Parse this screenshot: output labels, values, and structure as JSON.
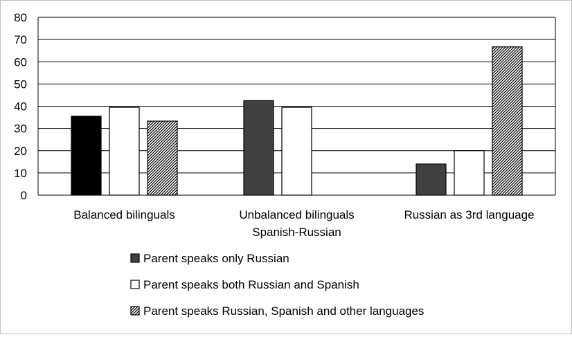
{
  "chart_data": {
    "type": "bar",
    "title": "",
    "xlabel": "",
    "ylabel": "",
    "ylim": [
      0,
      80
    ],
    "yticks": [
      0,
      10,
      20,
      30,
      40,
      50,
      60,
      70,
      80
    ],
    "grid": true,
    "legend_position": "bottom",
    "categories": [
      [
        "Balanced bilinguals"
      ],
      [
        "Unbalanced bilinguals",
        "Spanish-Russian"
      ],
      [
        "Russian as 3rd language"
      ]
    ],
    "series": [
      {
        "name": "Parent speaks only Russian",
        "values": [
          35.5,
          42.5,
          14
        ],
        "colors": [
          "#000000",
          "#404040",
          "#404040"
        ],
        "pattern": "solid"
      },
      {
        "name": "Parent speaks both Russian and Spanish",
        "values": [
          39.5,
          39.5,
          20
        ],
        "colors": [
          "#ffffff",
          "#ffffff",
          "#ffffff"
        ],
        "pattern": "solid"
      },
      {
        "name": "Parent speaks Russian, Spanish and other languages",
        "values": [
          33.3,
          0,
          66.7
        ],
        "colors": [
          "#ffffff",
          "#ffffff",
          "#ffffff"
        ],
        "pattern": "hatch"
      }
    ],
    "legend_colors": [
      "#404040",
      "#ffffff",
      "#ffffff"
    ]
  }
}
